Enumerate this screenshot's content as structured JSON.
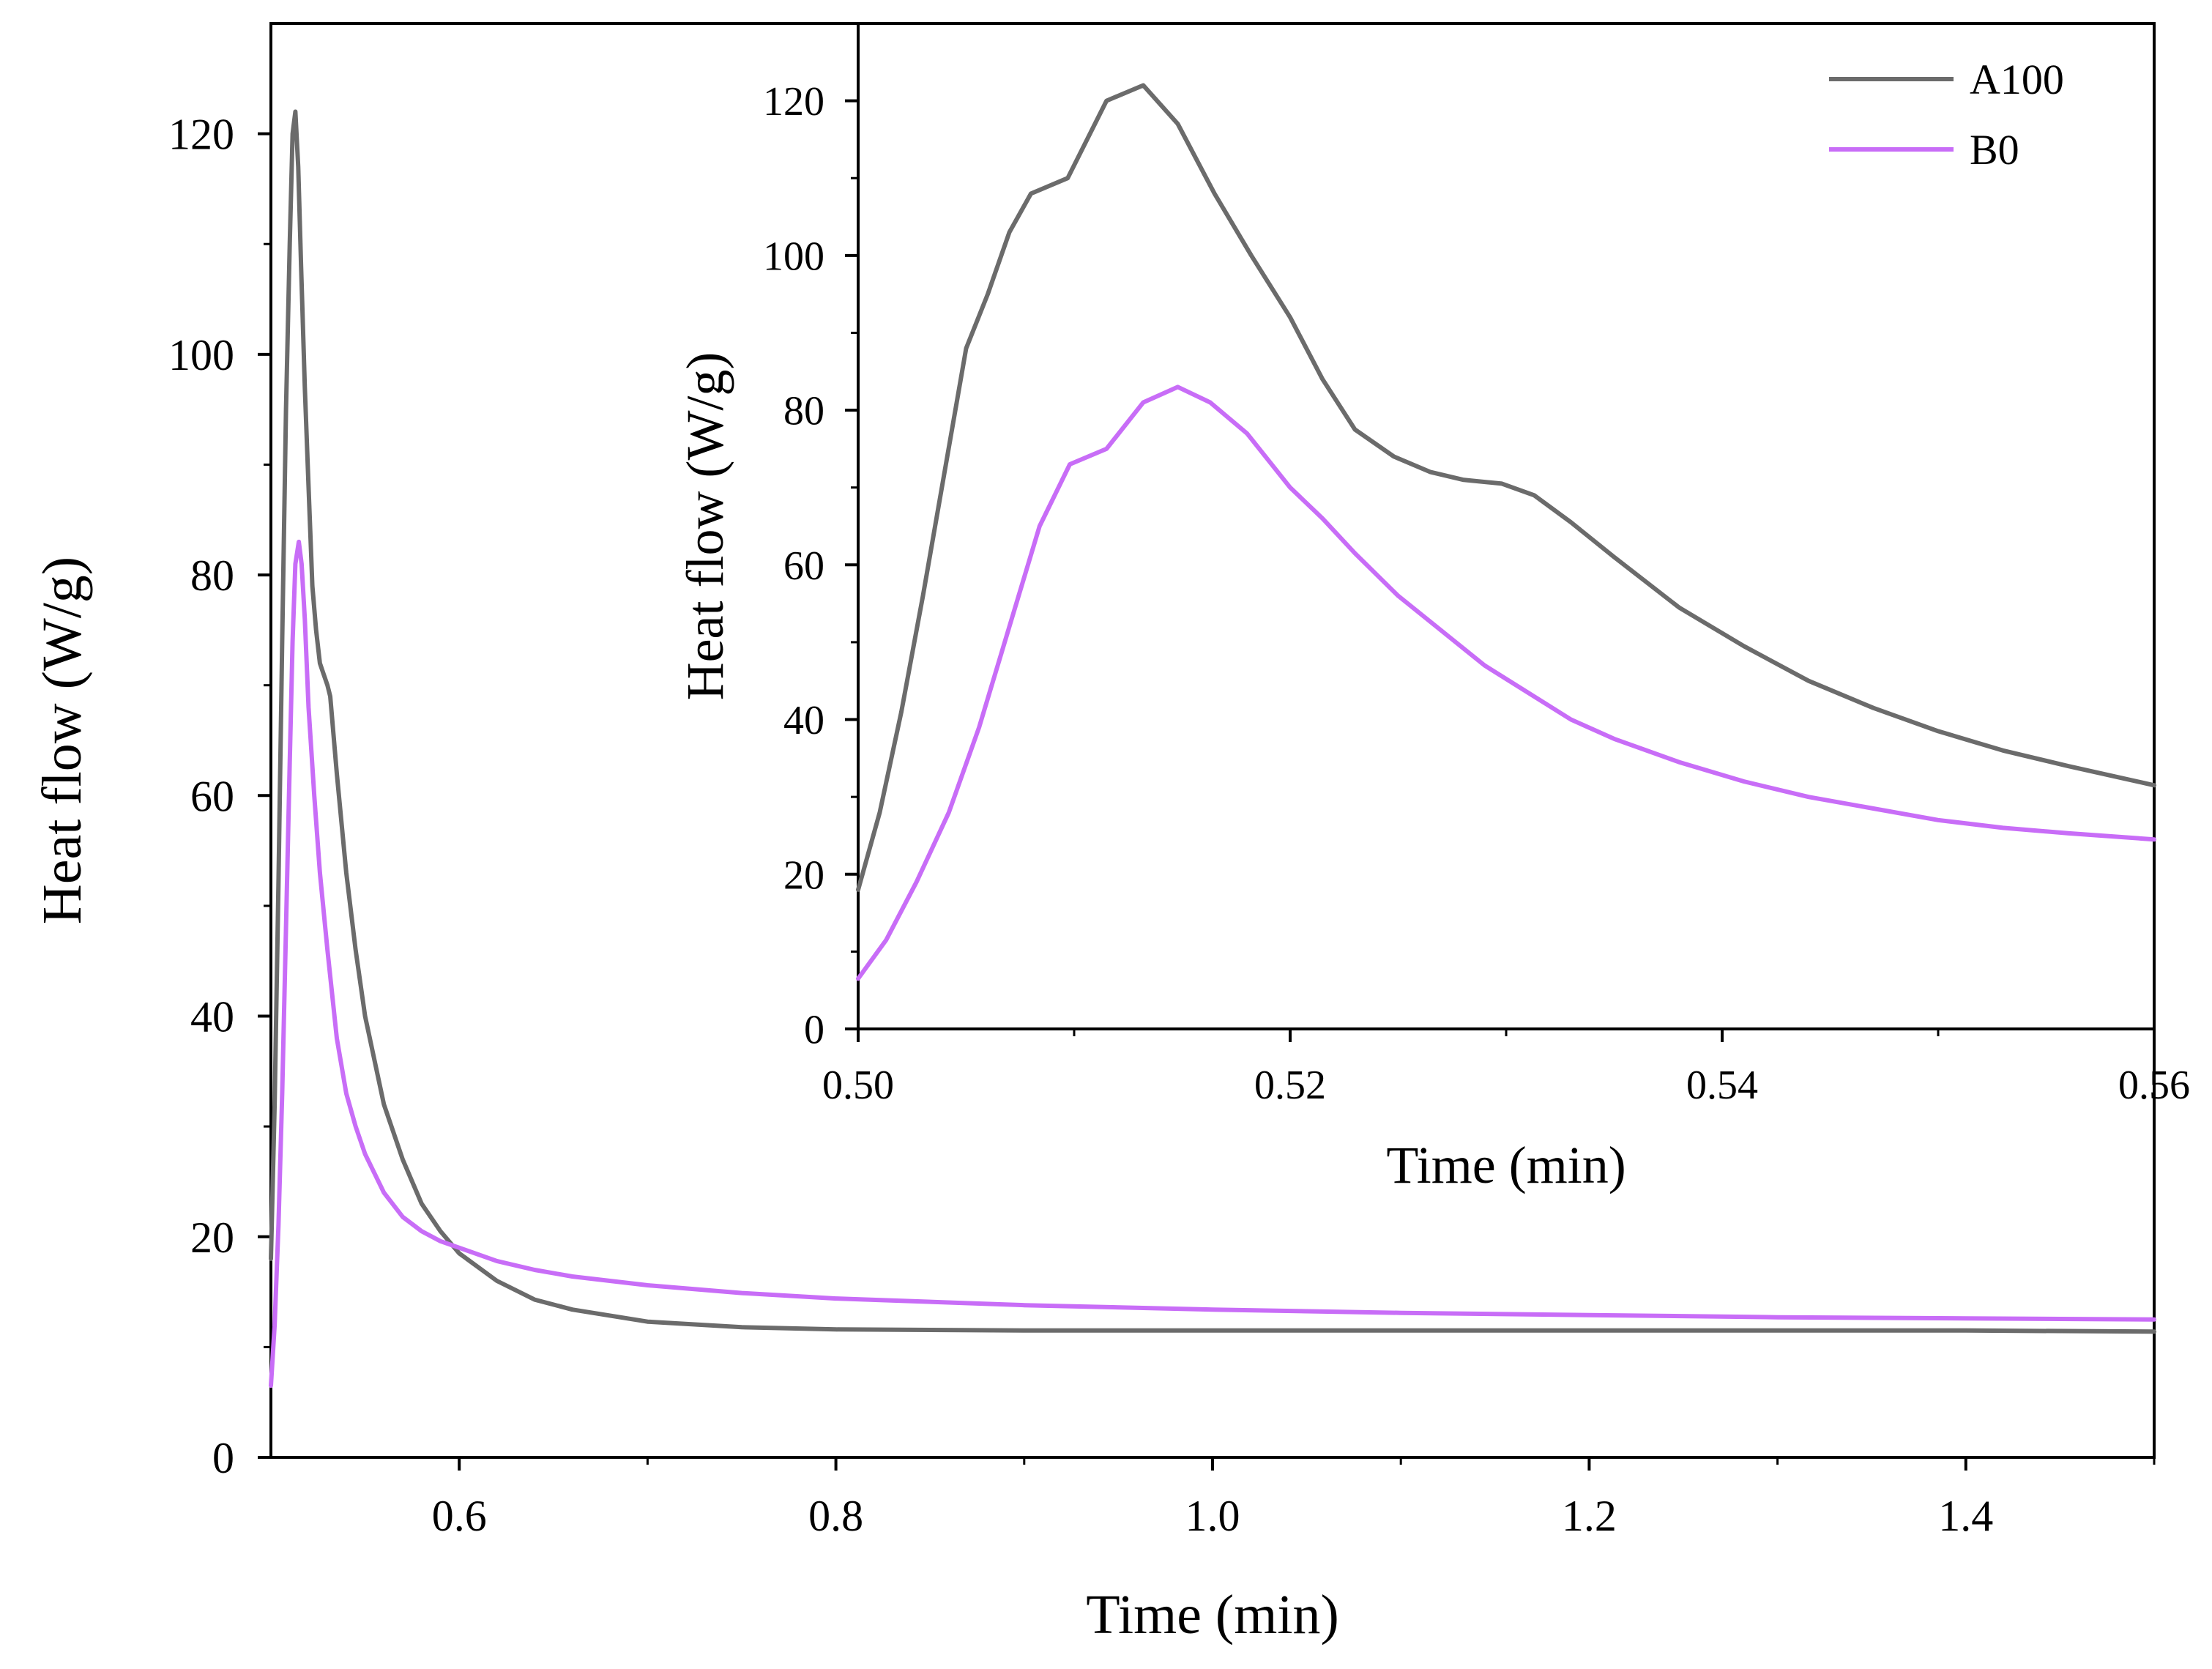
{
  "chart_data": [
    {
      "type": "line",
      "role": "main",
      "title": "",
      "xlabel": "Time (min)",
      "ylabel": "Heat flow (W/g)",
      "xlim": [
        0.5,
        1.5
      ],
      "ylim": [
        0,
        130
      ],
      "xticks": [
        0.6,
        0.8,
        1.0,
        1.2,
        1.4
      ],
      "xtick_labels": [
        "0.6",
        "0.8",
        "1.0",
        "1.2",
        "1.4"
      ],
      "yticks": [
        0,
        20,
        40,
        60,
        80,
        100,
        120
      ],
      "ytick_labels": [
        "0",
        "20",
        "40",
        "60",
        "80",
        "100",
        "120"
      ],
      "grid": false,
      "series": [
        {
          "name": "A100",
          "color": "#6b6b6b",
          "x": [
            0.5,
            0.502,
            0.504,
            0.506,
            0.508,
            0.51,
            0.5115,
            0.513,
            0.5145,
            0.516,
            0.518,
            0.52,
            0.522,
            0.524,
            0.526,
            0.528,
            0.53,
            0.5315,
            0.535,
            0.54,
            0.545,
            0.55,
            0.56,
            0.57,
            0.58,
            0.59,
            0.6,
            0.62,
            0.64,
            0.66,
            0.7,
            0.75,
            0.8,
            0.9,
            1.0,
            1.1,
            1.2,
            1.3,
            1.4,
            1.5
          ],
          "y": [
            18,
            32,
            52,
            74,
            95,
            110,
            120,
            122,
            117,
            108,
            97,
            88,
            79,
            75,
            72,
            71,
            70,
            69,
            62,
            53,
            46,
            40,
            32,
            27,
            23,
            20.5,
            18.5,
            16,
            14.3,
            13.4,
            12.3,
            11.8,
            11.6,
            11.5,
            11.5,
            11.5,
            11.5,
            11.5,
            11.5,
            11.4
          ]
        },
        {
          "name": "B0",
          "color": "#c86df7",
          "x": [
            0.5,
            0.502,
            0.504,
            0.506,
            0.508,
            0.51,
            0.5115,
            0.513,
            0.5148,
            0.5163,
            0.518,
            0.52,
            0.523,
            0.526,
            0.53,
            0.535,
            0.54,
            0.545,
            0.55,
            0.56,
            0.57,
            0.58,
            0.59,
            0.6,
            0.62,
            0.64,
            0.66,
            0.7,
            0.75,
            0.8,
            0.9,
            1.0,
            1.1,
            1.2,
            1.3,
            1.4,
            1.5
          ],
          "y": [
            6.5,
            12,
            21,
            33,
            48,
            63,
            74,
            81,
            83,
            81,
            76,
            68,
            60,
            53,
            46,
            38,
            33,
            30,
            27.5,
            24,
            21.8,
            20.5,
            19.6,
            19,
            17.8,
            17,
            16.4,
            15.6,
            14.9,
            14.4,
            13.8,
            13.4,
            13.1,
            12.9,
            12.7,
            12.6,
            12.5
          ]
        }
      ]
    },
    {
      "type": "line",
      "role": "inset",
      "title": "",
      "xlabel": "Time (min)",
      "ylabel": "Heat flow (W/g)",
      "xlim": [
        0.5,
        0.56
      ],
      "ylim": [
        0,
        130
      ],
      "xticks": [
        0.5,
        0.52,
        0.54,
        0.56
      ],
      "xtick_labels": [
        "0.50",
        "0.52",
        "0.54",
        "0.56"
      ],
      "yticks": [
        0,
        20,
        40,
        60,
        80,
        100,
        120
      ],
      "ytick_labels": [
        "0",
        "20",
        "40",
        "60",
        "80",
        "100",
        "120"
      ],
      "grid": false,
      "legend": {
        "position": "top-right",
        "entries": [
          "A100",
          "B0"
        ]
      },
      "series": [
        {
          "name": "A100",
          "color": "#6b6b6b",
          "x": [
            0.5,
            0.501,
            0.502,
            0.503,
            0.504,
            0.505,
            0.506,
            0.507,
            0.508,
            0.5097,
            0.5115,
            0.5132,
            0.5148,
            0.5165,
            0.5182,
            0.52,
            0.5215,
            0.523,
            0.5248,
            0.5265,
            0.528,
            0.5298,
            0.5313,
            0.533,
            0.535,
            0.538,
            0.541,
            0.544,
            0.547,
            0.55,
            0.553,
            0.556,
            0.56
          ],
          "y": [
            18,
            28,
            41,
            56,
            72,
            88,
            95,
            103,
            108,
            110,
            120,
            122,
            117,
            108,
            100,
            92,
            84,
            77.5,
            74,
            72,
            71,
            70.5,
            69,
            65.5,
            61,
            54.5,
            49.5,
            45,
            41.5,
            38.5,
            36,
            34,
            31.5
          ]
        },
        {
          "name": "B0",
          "color": "#c86df7",
          "x": [
            0.5,
            0.5013,
            0.5027,
            0.5042,
            0.5056,
            0.507,
            0.5084,
            0.5098,
            0.5115,
            0.5132,
            0.5148,
            0.5163,
            0.518,
            0.52,
            0.5215,
            0.523,
            0.525,
            0.527,
            0.529,
            0.531,
            0.533,
            0.535,
            0.538,
            0.541,
            0.544,
            0.547,
            0.55,
            0.553,
            0.556,
            0.56
          ],
          "y": [
            6.5,
            11.5,
            19,
            28,
            39,
            52,
            65,
            73,
            75,
            81,
            83,
            81,
            77,
            70,
            66,
            61.5,
            56,
            51.5,
            47,
            43.5,
            40,
            37.5,
            34.5,
            32,
            30,
            28.5,
            27,
            26,
            25.3,
            24.5
          ]
        }
      ]
    }
  ]
}
